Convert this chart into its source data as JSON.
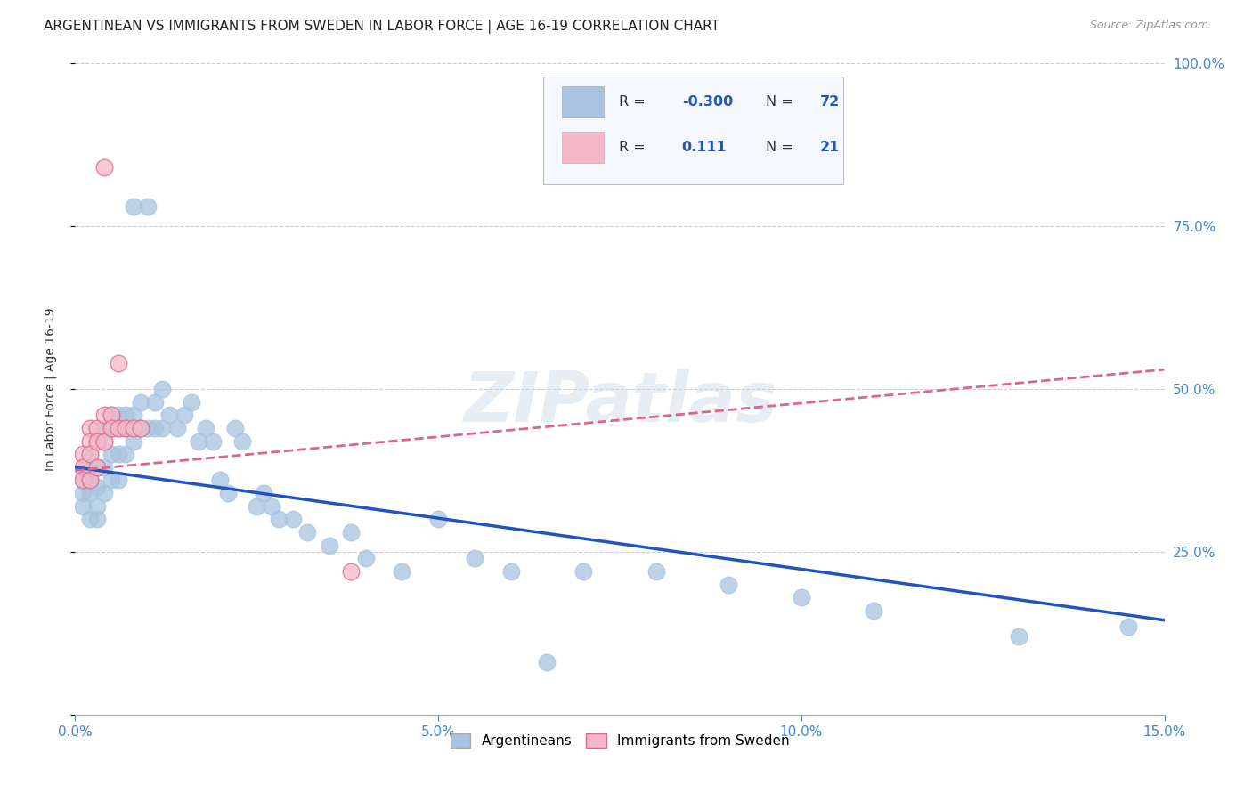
{
  "title": "ARGENTINEAN VS IMMIGRANTS FROM SWEDEN IN LABOR FORCE | AGE 16-19 CORRELATION CHART",
  "source": "Source: ZipAtlas.com",
  "ylabel": "In Labor Force | Age 16-19",
  "xlim": [
    0.0,
    0.15
  ],
  "ylim": [
    0.0,
    1.0
  ],
  "xticks": [
    0.0,
    0.05,
    0.1,
    0.15
  ],
  "xtick_labels": [
    "0.0%",
    "5.0%",
    "10.0%",
    "15.0%"
  ],
  "yticks": [
    0.0,
    0.25,
    0.5,
    0.75,
    1.0
  ],
  "ytick_labels": [
    "",
    "25.0%",
    "50.0%",
    "75.0%",
    "100.0%"
  ],
  "blue_color": "#a8c4e0",
  "blue_line_color": "#2255bb",
  "pink_color": "#f4b8c8",
  "pink_line_color": "#dd6688",
  "r_blue": -0.3,
  "n_blue": 72,
  "r_pink": 0.111,
  "n_pink": 21,
  "legend_r_color": "#2255bb",
  "watermark": "ZIPatlas",
  "watermark_color": "#c8d8e8",
  "tick_label_color": "#4488cc",
  "blue_trend": [
    0.38,
    0.145
  ],
  "pink_trend": [
    0.375,
    0.53
  ],
  "blue_x": [
    0.001,
    0.001,
    0.001,
    0.001,
    0.002,
    0.002,
    0.002,
    0.002,
    0.002,
    0.003,
    0.003,
    0.003,
    0.003,
    0.003,
    0.004,
    0.004,
    0.004,
    0.004,
    0.005,
    0.005,
    0.005,
    0.005,
    0.006,
    0.006,
    0.006,
    0.006,
    0.007,
    0.007,
    0.007,
    0.008,
    0.008,
    0.008,
    0.009,
    0.009,
    0.01,
    0.01,
    0.011,
    0.011,
    0.012,
    0.012,
    0.013,
    0.014,
    0.015,
    0.016,
    0.017,
    0.018,
    0.019,
    0.02,
    0.021,
    0.022,
    0.023,
    0.025,
    0.026,
    0.027,
    0.028,
    0.03,
    0.032,
    0.035,
    0.038,
    0.04,
    0.045,
    0.05,
    0.055,
    0.06,
    0.065,
    0.07,
    0.08,
    0.09,
    0.1,
    0.11,
    0.13,
    0.145
  ],
  "blue_y": [
    0.38,
    0.36,
    0.34,
    0.32,
    0.4,
    0.38,
    0.36,
    0.34,
    0.3,
    0.42,
    0.38,
    0.35,
    0.32,
    0.3,
    0.44,
    0.42,
    0.38,
    0.34,
    0.46,
    0.44,
    0.4,
    0.36,
    0.46,
    0.44,
    0.4,
    0.36,
    0.46,
    0.44,
    0.4,
    0.78,
    0.46,
    0.42,
    0.48,
    0.44,
    0.78,
    0.44,
    0.48,
    0.44,
    0.5,
    0.44,
    0.46,
    0.44,
    0.46,
    0.48,
    0.42,
    0.44,
    0.42,
    0.36,
    0.34,
    0.44,
    0.42,
    0.32,
    0.34,
    0.32,
    0.3,
    0.3,
    0.28,
    0.26,
    0.28,
    0.24,
    0.22,
    0.3,
    0.24,
    0.22,
    0.08,
    0.22,
    0.22,
    0.2,
    0.18,
    0.16,
    0.12,
    0.135
  ],
  "pink_x": [
    0.001,
    0.001,
    0.001,
    0.002,
    0.002,
    0.002,
    0.002,
    0.003,
    0.003,
    0.003,
    0.004,
    0.004,
    0.004,
    0.005,
    0.005,
    0.006,
    0.006,
    0.007,
    0.008,
    0.009,
    0.038
  ],
  "pink_y": [
    0.4,
    0.38,
    0.36,
    0.44,
    0.42,
    0.4,
    0.36,
    0.44,
    0.42,
    0.38,
    0.84,
    0.46,
    0.42,
    0.46,
    0.44,
    0.54,
    0.44,
    0.44,
    0.44,
    0.44,
    0.22
  ]
}
